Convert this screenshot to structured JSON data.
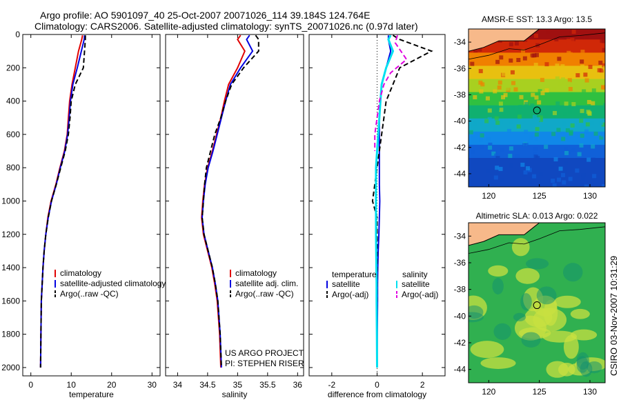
{
  "header": {
    "line1": "Argo profile: AO 5901097_40 25-Oct-2007 20071026_114 39.184S 124.764E",
    "line2": "Climatology: CARS2006. Satellite-adjusted climatology: synTS_20071026.nc (0.97d later)"
  },
  "side_text": "CSIRO 03-Nov-2007 10:31:29",
  "credit": [
    "US ARGO PROJECT",
    "PI: STEPHEN RISER"
  ],
  "colors": {
    "climatology": "#e00000",
    "satellite": "#0000e0",
    "argo": "#000000",
    "sat_diff": "#00e0f0",
    "argo_sal_diff": "#e000e0",
    "land": "#f7b98a"
  },
  "chart_data": [
    {
      "type": "line",
      "id": "temperature",
      "xlabel": "temperature",
      "xlim": [
        -2,
        32
      ],
      "ylim": [
        0,
        2050
      ],
      "y_reversed": true,
      "xticks": [
        0,
        10,
        20,
        30
      ],
      "yticks": [
        0,
        200,
        400,
        600,
        800,
        1000,
        1200,
        1400,
        1600,
        1800,
        2000
      ],
      "legend": [
        "climatology",
        "satellite-adjusted climatology",
        "Argo(..raw -QC)"
      ],
      "legend_position": "lower-middle",
      "series": [
        {
          "name": "climatology",
          "style": "solid",
          "color": "#e00000",
          "x": [
            12.8,
            12.6,
            11.8,
            11.0,
            10.2,
            9.6,
            9.3,
            9.0,
            8.3,
            7.2,
            6.2,
            5.0,
            4.2,
            3.7,
            3.3,
            3.0,
            2.8,
            2.6,
            2.5,
            2.4
          ],
          "y": [
            5,
            30,
            100,
            200,
            300,
            400,
            500,
            600,
            700,
            800,
            900,
            1000,
            1100,
            1200,
            1300,
            1400,
            1500,
            1600,
            1800,
            2000
          ]
        },
        {
          "name": "satellite-adjusted climatology",
          "style": "solid",
          "color": "#0000e0",
          "x": [
            13.3,
            13.2,
            12.5,
            11.5,
            10.4,
            9.8,
            9.5,
            9.1,
            8.4,
            7.3,
            6.3,
            5.1,
            4.3,
            3.7,
            3.3,
            3.0,
            2.8,
            2.6,
            2.5,
            2.4
          ],
          "y": [
            5,
            30,
            100,
            200,
            300,
            400,
            500,
            600,
            700,
            800,
            900,
            1000,
            1100,
            1200,
            1300,
            1400,
            1500,
            1600,
            1800,
            2000
          ]
        },
        {
          "name": "Argo(..raw -QC)",
          "style": "dashed",
          "color": "#000000",
          "x": [
            13.5,
            13.5,
            13.3,
            13.0,
            11.0,
            10.0,
            9.7,
            9.3,
            8.5,
            7.4,
            6.3,
            5.1,
            4.3,
            3.7,
            3.3,
            3.0,
            2.8,
            2.6,
            2.5,
            2.4
          ],
          "y": [
            5,
            30,
            100,
            200,
            300,
            400,
            500,
            600,
            700,
            800,
            900,
            1000,
            1100,
            1200,
            1300,
            1400,
            1500,
            1600,
            1800,
            2000
          ]
        }
      ]
    },
    {
      "type": "line",
      "id": "salinity",
      "xlabel": "salinity",
      "xlim": [
        33.8,
        36.1
      ],
      "ylim": [
        0,
        2050
      ],
      "y_reversed": true,
      "xticks": [
        34,
        34.5,
        35,
        35.5,
        36
      ],
      "legend": [
        "climatology",
        "satellite adj. clim.",
        "Argo(..raw -QC)"
      ],
      "legend_position": "lower-right",
      "series": [
        {
          "name": "climatology",
          "style": "solid",
          "color": "#e00000",
          "x": [
            35.05,
            35.0,
            35.12,
            35.0,
            34.85,
            34.78,
            34.72,
            34.65,
            34.58,
            34.5,
            34.45,
            34.42,
            34.4,
            34.43,
            34.5,
            34.57,
            34.62,
            34.66,
            34.7,
            34.72
          ],
          "y": [
            5,
            30,
            100,
            200,
            300,
            400,
            500,
            600,
            700,
            800,
            900,
            1000,
            1100,
            1200,
            1300,
            1400,
            1500,
            1600,
            1800,
            2000
          ]
        },
        {
          "name": "satellite adj. clim.",
          "style": "solid",
          "color": "#0000e0",
          "x": [
            35.2,
            35.15,
            35.25,
            35.05,
            34.88,
            34.8,
            34.73,
            34.66,
            34.59,
            34.51,
            34.46,
            34.43,
            34.41,
            34.44,
            34.51,
            34.58,
            34.63,
            34.67,
            34.71,
            34.73
          ],
          "y": [
            5,
            30,
            100,
            200,
            300,
            400,
            500,
            600,
            700,
            800,
            900,
            1000,
            1100,
            1200,
            1300,
            1400,
            1500,
            1600,
            1800,
            2000
          ]
        },
        {
          "name": "Argo(..raw -QC)",
          "style": "dashed",
          "color": "#000000",
          "x": [
            35.3,
            35.35,
            35.35,
            35.1,
            34.9,
            34.8,
            34.72,
            34.62,
            34.55,
            34.48,
            34.45,
            34.43,
            34.41,
            34.44,
            34.51,
            34.58,
            34.63,
            34.67,
            34.71,
            34.73
          ],
          "y": [
            5,
            30,
            100,
            200,
            300,
            400,
            500,
            600,
            700,
            800,
            900,
            1000,
            1100,
            1200,
            1300,
            1400,
            1500,
            1600,
            1800,
            2000
          ]
        }
      ]
    },
    {
      "type": "line",
      "id": "difference",
      "xlabel": "difference from climatology",
      "xlim": [
        -3,
        3
      ],
      "ylim": [
        0,
        2050
      ],
      "y_reversed": true,
      "xticks": [
        -2,
        0,
        2
      ],
      "zero_line": "dotted",
      "legend_left_title": "temperature",
      "legend_right_title": "salinity",
      "legend_left": [
        "satellite",
        "Argo(-adj)"
      ],
      "legend_right": [
        "satellite",
        "Argo(-adj)"
      ],
      "series": [
        {
          "name": "temperature satellite",
          "style": "solid",
          "color": "#0000e0",
          "x": [
            0.5,
            0.5,
            0.6,
            0.4,
            0.2,
            0.15,
            0.1,
            0.1,
            0.1,
            0.1,
            0.1,
            0.12,
            0.1,
            0.08,
            0.05,
            0.03,
            0.02,
            0.02,
            0.01,
            0.0
          ],
          "y": [
            5,
            30,
            100,
            200,
            300,
            400,
            500,
            600,
            700,
            800,
            900,
            1000,
            1100,
            1200,
            1300,
            1400,
            1500,
            1600,
            1800,
            2000
          ]
        },
        {
          "name": "temperature Argo(-adj)",
          "style": "dashed",
          "color": "#000000",
          "x": [
            0.7,
            1.0,
            2.4,
            1.0,
            0.7,
            0.4,
            0.3,
            0.2,
            0.1,
            0.0,
            -0.1,
            -0.2,
            0.0,
            0.0,
            0.0,
            0.0,
            0.0,
            0.0,
            0.0,
            0.0
          ],
          "y": [
            5,
            30,
            100,
            200,
            300,
            400,
            500,
            600,
            700,
            800,
            900,
            1000,
            1100,
            1200,
            1300,
            1400,
            1500,
            1600,
            1800,
            2000
          ]
        },
        {
          "name": "salinity satellite",
          "style": "solid",
          "color": "#00e0f0",
          "x": [
            0.6,
            0.5,
            0.7,
            0.4,
            0.2,
            0.15,
            0.1,
            0.05,
            0.0,
            -0.05,
            -0.05,
            -0.05,
            -0.05,
            -0.05,
            -0.04,
            -0.03,
            -0.02,
            -0.02,
            -0.01,
            0.0
          ],
          "y": [
            5,
            30,
            100,
            200,
            300,
            400,
            500,
            600,
            700,
            800,
            900,
            1000,
            1100,
            1200,
            1300,
            1400,
            1500,
            1600,
            1800,
            2000
          ]
        },
        {
          "name": "salinity Argo(-adj)",
          "style": "dashed",
          "color": "#e000e0",
          "x": [
            0.9,
            0.8,
            1.3,
            0.6,
            0.3,
            0.1,
            0.0,
            -0.1,
            -0.1,
            null
          ],
          "y": [
            5,
            50,
            150,
            230,
            300,
            400,
            500,
            600,
            700,
            null
          ]
        }
      ]
    },
    {
      "type": "heatmap",
      "id": "sst_map",
      "title": "AMSR-E SST: 13.3 Argo: 13.5",
      "xlim": [
        118,
        131.5
      ],
      "ylim": [
        -45,
        -33
      ],
      "xticks": [
        120,
        125,
        130
      ],
      "yticks": [
        -34,
        -36,
        -38,
        -40,
        -42,
        -44
      ],
      "argo_marker": {
        "lon": 124.764,
        "lat": -39.184
      },
      "bands": [
        {
          "lat": -34,
          "color": "#a01010"
        },
        {
          "lat": -35,
          "color": "#d02808"
        },
        {
          "lat": -36,
          "color": "#f08000"
        },
        {
          "lat": -37,
          "color": "#e8c010"
        },
        {
          "lat": -38,
          "color": "#a8d020"
        },
        {
          "lat": -39,
          "color": "#30c040"
        },
        {
          "lat": -40,
          "color": "#10b070"
        },
        {
          "lat": -41,
          "color": "#10a8c8"
        },
        {
          "lat": -42,
          "color": "#1088e8"
        },
        {
          "lat": -43,
          "color": "#1060d8"
        },
        {
          "lat": -44,
          "color": "#1048c0"
        }
      ]
    },
    {
      "type": "heatmap",
      "id": "sla_map",
      "title": "Altimetric SLA: 0.013 Argo: 0.022",
      "xlim": [
        118,
        131.5
      ],
      "ylim": [
        -45,
        -33
      ],
      "xticks": [
        120,
        125,
        130
      ],
      "yticks": [
        -34,
        -36,
        -38,
        -40,
        -42,
        -44
      ],
      "argo_marker": {
        "lon": 124.764,
        "lat": -39.184
      },
      "base_color": "#30b050",
      "patch_color": "#c8e040"
    }
  ]
}
